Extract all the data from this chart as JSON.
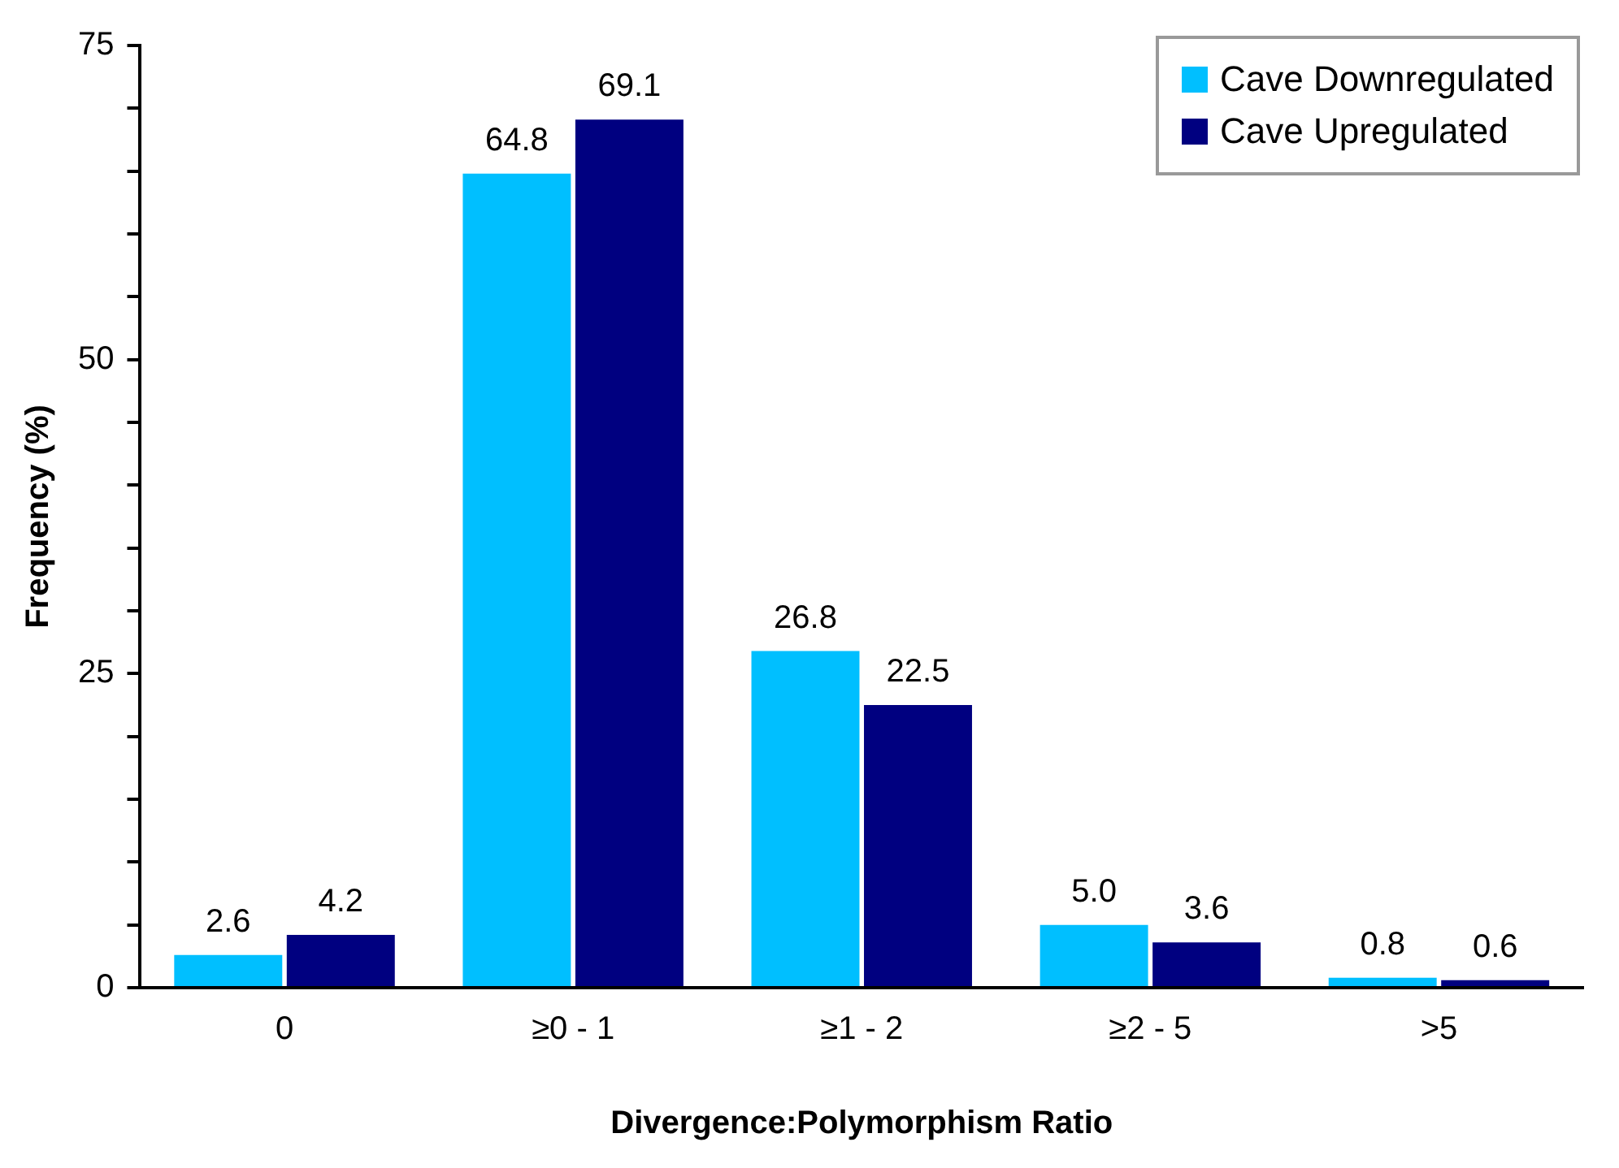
{
  "chart_data": {
    "type": "bar",
    "xlabel": "Divergence:Polymorphism Ratio",
    "ylabel": "Frequency (%)",
    "categories": [
      "0",
      "≥0 - 1",
      "≥1 - 2",
      "≥2 - 5",
      ">5"
    ],
    "series": [
      {
        "name": "Cave Downregulated",
        "color": "#00bfff",
        "values": [
          2.6,
          64.8,
          26.8,
          5.0,
          0.8
        ],
        "value_labels": [
          "2.6",
          "64.8",
          "26.8",
          "5.0",
          "0.8"
        ]
      },
      {
        "name": "Cave Upregulated",
        "color": "#000080",
        "values": [
          4.2,
          69.1,
          22.5,
          3.6,
          0.6
        ],
        "value_labels": [
          "4.2",
          "69.1",
          "22.5",
          "3.6",
          "0.6"
        ]
      }
    ],
    "ylim": [
      0,
      75
    ],
    "yticks": [
      0,
      {
        "value": 5,
        "label": null
      },
      {
        "value": 10,
        "label": null
      },
      {
        "value": 15,
        "label": null
      },
      {
        "value": 20,
        "label": null
      },
      25,
      {
        "value": 30,
        "label": null
      },
      {
        "value": 35,
        "label": null
      },
      {
        "value": 40,
        "label": null
      },
      {
        "value": 45,
        "label": null
      },
      50,
      {
        "value": 55,
        "label": null
      },
      {
        "value": 60,
        "label": null
      },
      {
        "value": 65,
        "label": null
      },
      {
        "value": 70,
        "label": null
      },
      75
    ],
    "grid": false,
    "legend": "top right"
  }
}
